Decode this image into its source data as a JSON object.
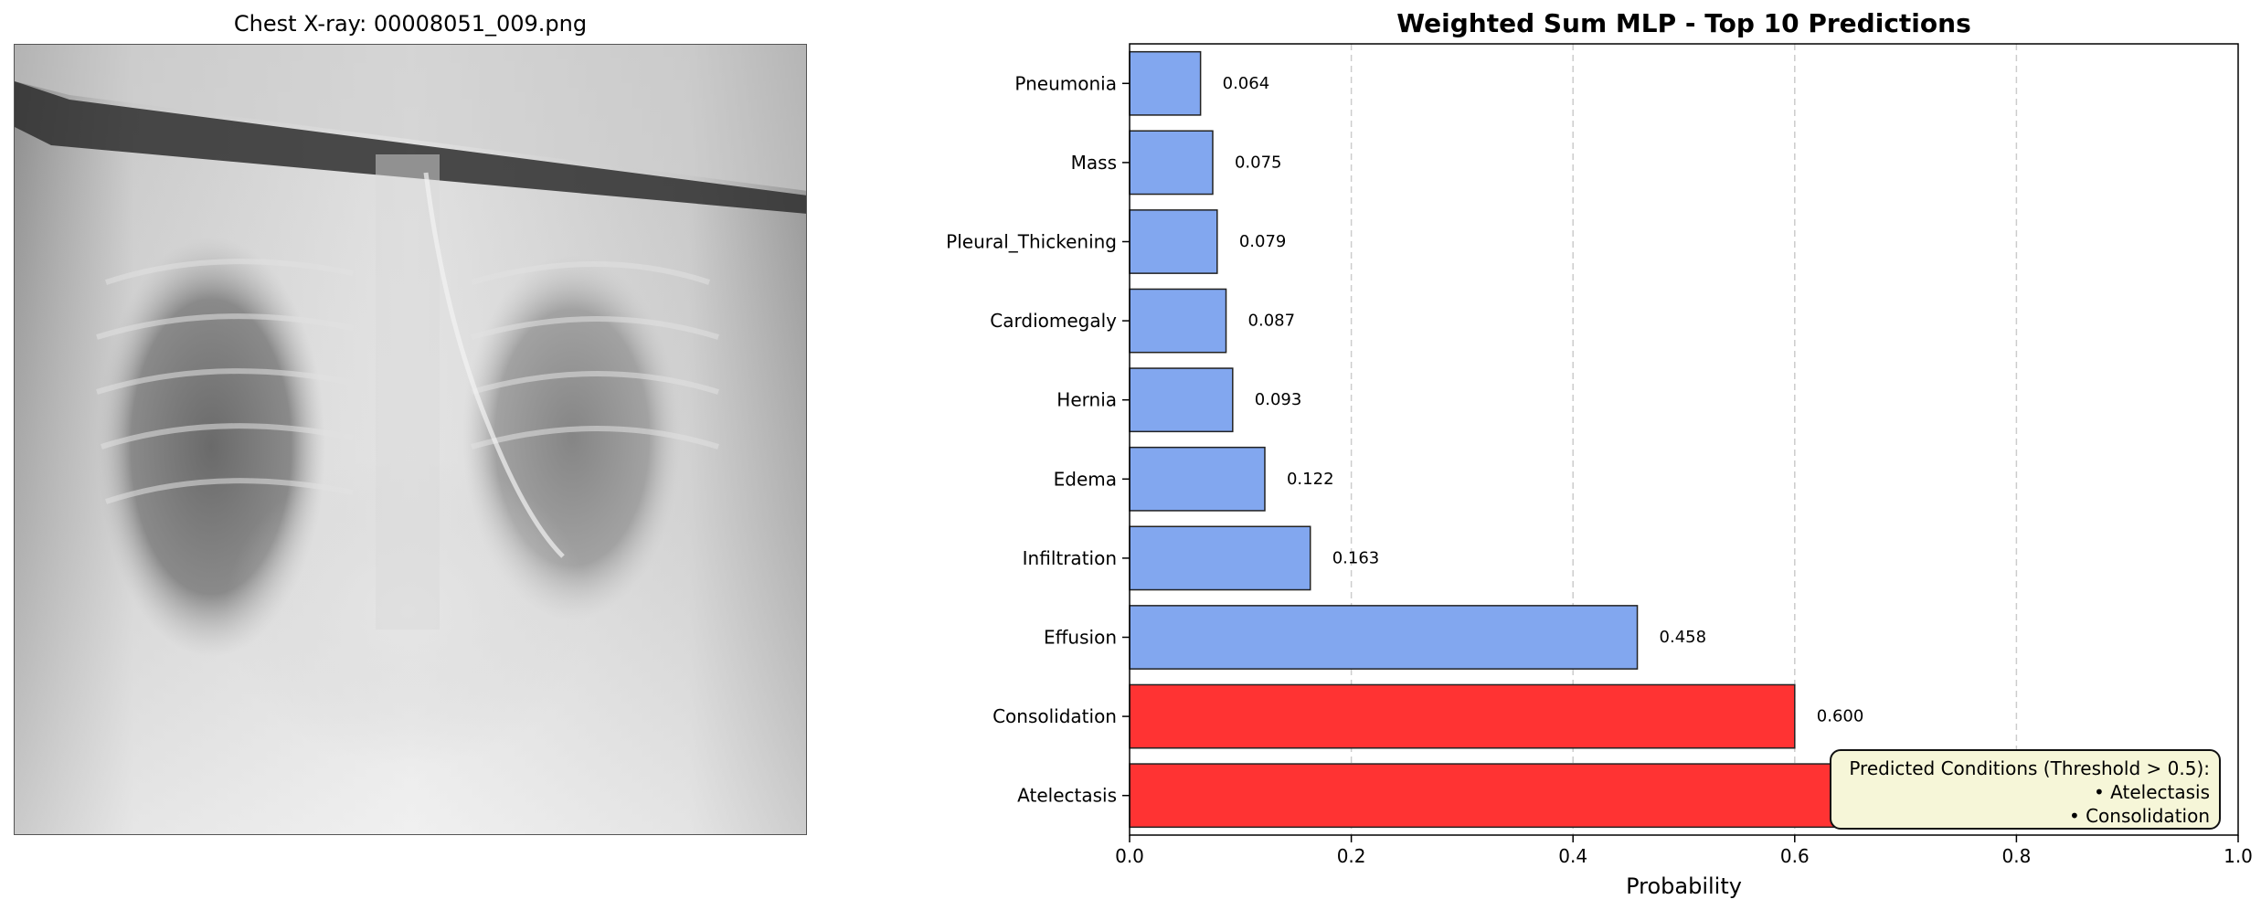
{
  "xray": {
    "title": "Chest X-ray: 00008051_009.png"
  },
  "chart_data": {
    "type": "bar",
    "orientation": "horizontal",
    "title": "Weighted Sum MLP - Top 10 Predictions",
    "xlabel": "Probability",
    "ylabel": "",
    "xlim": [
      0,
      1
    ],
    "xticks": [
      "0.0",
      "0.2",
      "0.4",
      "0.6",
      "0.8",
      "1.0"
    ],
    "grid": "vertical dashed",
    "categories": [
      "Atelectasis",
      "Consolidation",
      "Effusion",
      "Infiltration",
      "Edema",
      "Hernia",
      "Cardiomegaly",
      "Pleural_Thickening",
      "Mass",
      "Pneumonia"
    ],
    "values": [
      0.848,
      0.6,
      0.458,
      0.163,
      0.122,
      0.093,
      0.087,
      0.079,
      0.075,
      0.064
    ],
    "value_labels": [
      null,
      "0.600",
      "0.458",
      "0.163",
      "0.122",
      "0.093",
      "0.087",
      "0.079",
      "0.075",
      "0.064"
    ],
    "threshold": 0.5,
    "colors": {
      "above": "#ff3333",
      "below": "#82a7ef",
      "edge": "#222222"
    }
  },
  "legend": {
    "heading": "Predicted Conditions (Threshold > 0.5):",
    "items": [
      "• Atelectasis",
      "• Consolidation"
    ],
    "placement": "bottom-right"
  }
}
